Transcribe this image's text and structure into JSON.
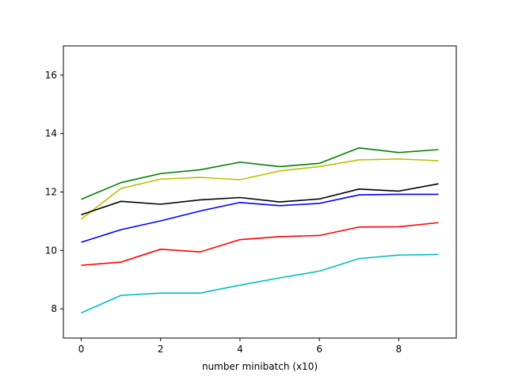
{
  "chart_data": {
    "type": "line",
    "title": "",
    "xlabel": "number minibatch (x10)",
    "ylabel": "",
    "xlim": [
      -0.45,
      9.45
    ],
    "ylim": [
      7,
      17
    ],
    "xticks": [
      0,
      2,
      4,
      6,
      8
    ],
    "yticks": [
      8,
      10,
      12,
      14,
      16
    ],
    "grid": false,
    "legend": "none",
    "x": [
      0,
      1,
      2,
      3,
      4,
      5,
      6,
      7,
      8,
      9
    ],
    "series": [
      {
        "color": "#008000",
        "values": [
          11.75,
          12.32,
          12.63,
          12.76,
          13.02,
          12.87,
          12.98,
          13.51,
          13.35,
          13.45
        ]
      },
      {
        "color": "#bfbf00",
        "values": [
          11.07,
          12.12,
          12.44,
          12.5,
          12.42,
          12.72,
          12.87,
          13.1,
          13.13,
          13.07
        ]
      },
      {
        "color": "#000000",
        "values": [
          11.22,
          11.68,
          11.58,
          11.73,
          11.81,
          11.66,
          11.76,
          12.1,
          12.03,
          12.28
        ]
      },
      {
        "color": "#0000ff",
        "values": [
          10.28,
          10.71,
          11.01,
          11.35,
          11.64,
          11.53,
          11.61,
          11.9,
          11.92,
          11.92
        ]
      },
      {
        "color": "#ff0000",
        "values": [
          9.49,
          9.6,
          10.04,
          9.95,
          10.37,
          10.47,
          10.51,
          10.8,
          10.81,
          10.95
        ]
      },
      {
        "color": "#00bfbf",
        "values": [
          7.86,
          8.46,
          8.54,
          8.54,
          8.81,
          9.06,
          9.29,
          9.72,
          9.84,
          9.86
        ]
      }
    ]
  }
}
